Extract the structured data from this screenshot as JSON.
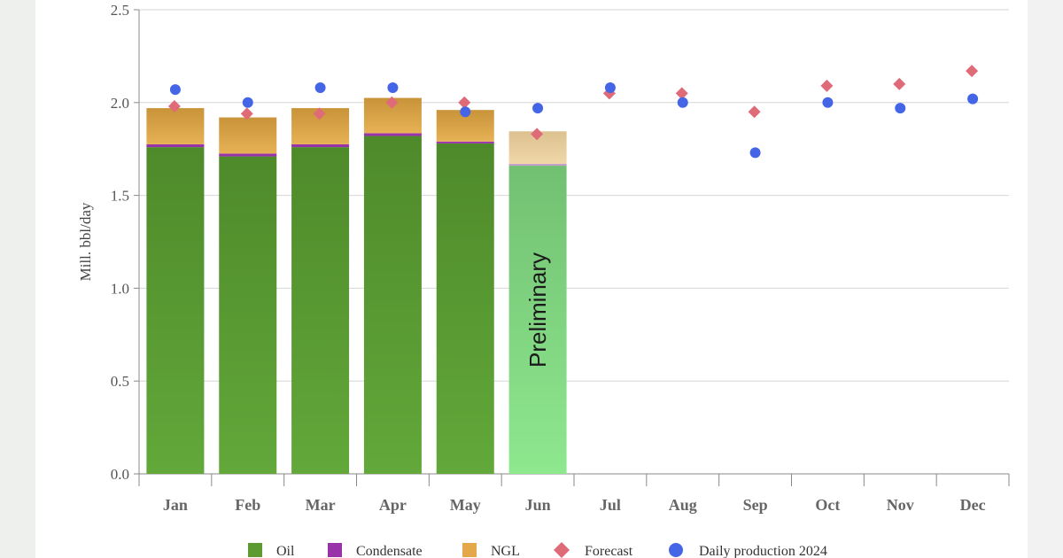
{
  "chart_data": {
    "type": "bar",
    "ylabel": "Mill. bbl/day",
    "ylim": [
      0,
      2.5
    ],
    "yticks": [
      "0.0",
      "0.5",
      "1.0",
      "1.5",
      "2.0",
      "2.5"
    ],
    "categories": [
      "Jan",
      "Feb",
      "Mar",
      "Apr",
      "May",
      "Jun",
      "Jul",
      "Aug",
      "Sep",
      "Oct",
      "Nov",
      "Dec"
    ],
    "series": [
      {
        "name": "Oil",
        "type": "stacked-bar",
        "color": "#5d9a32",
        "values": [
          1.76,
          1.71,
          1.76,
          1.82,
          1.78,
          1.66,
          null,
          null,
          null,
          null,
          null,
          null
        ]
      },
      {
        "name": "Condensate",
        "type": "stacked-bar",
        "color": "#9933aa",
        "values": [
          0.015,
          0.015,
          0.015,
          0.015,
          0.01,
          0.01,
          null,
          null,
          null,
          null,
          null,
          null
        ]
      },
      {
        "name": "NGL",
        "type": "stacked-bar",
        "color": "#e3a84a",
        "values": [
          0.195,
          0.195,
          0.195,
          0.19,
          0.17,
          0.175,
          null,
          null,
          null,
          null,
          null,
          null
        ]
      },
      {
        "name": "Forecast",
        "type": "scatter",
        "marker": "diamond",
        "color": "#e06b78",
        "values": [
          1.98,
          1.94,
          1.94,
          2.0,
          2.0,
          1.83,
          2.05,
          2.05,
          1.95,
          2.09,
          2.1,
          2.17
        ]
      },
      {
        "name": "Daily production 2024",
        "type": "scatter",
        "marker": "circle",
        "color": "#4466e6",
        "values": [
          2.07,
          2.0,
          2.08,
          2.08,
          1.95,
          1.97,
          2.08,
          2.0,
          1.73,
          2.0,
          1.97,
          2.02
        ]
      }
    ],
    "annotations": [
      {
        "category": "Jun",
        "text": "Preliminary",
        "rotation": -90
      }
    ],
    "preliminary_colors": {
      "oil": "#8ee88e",
      "ngl": "#f0d8a8"
    },
    "grid": true,
    "legend": "bottom"
  }
}
